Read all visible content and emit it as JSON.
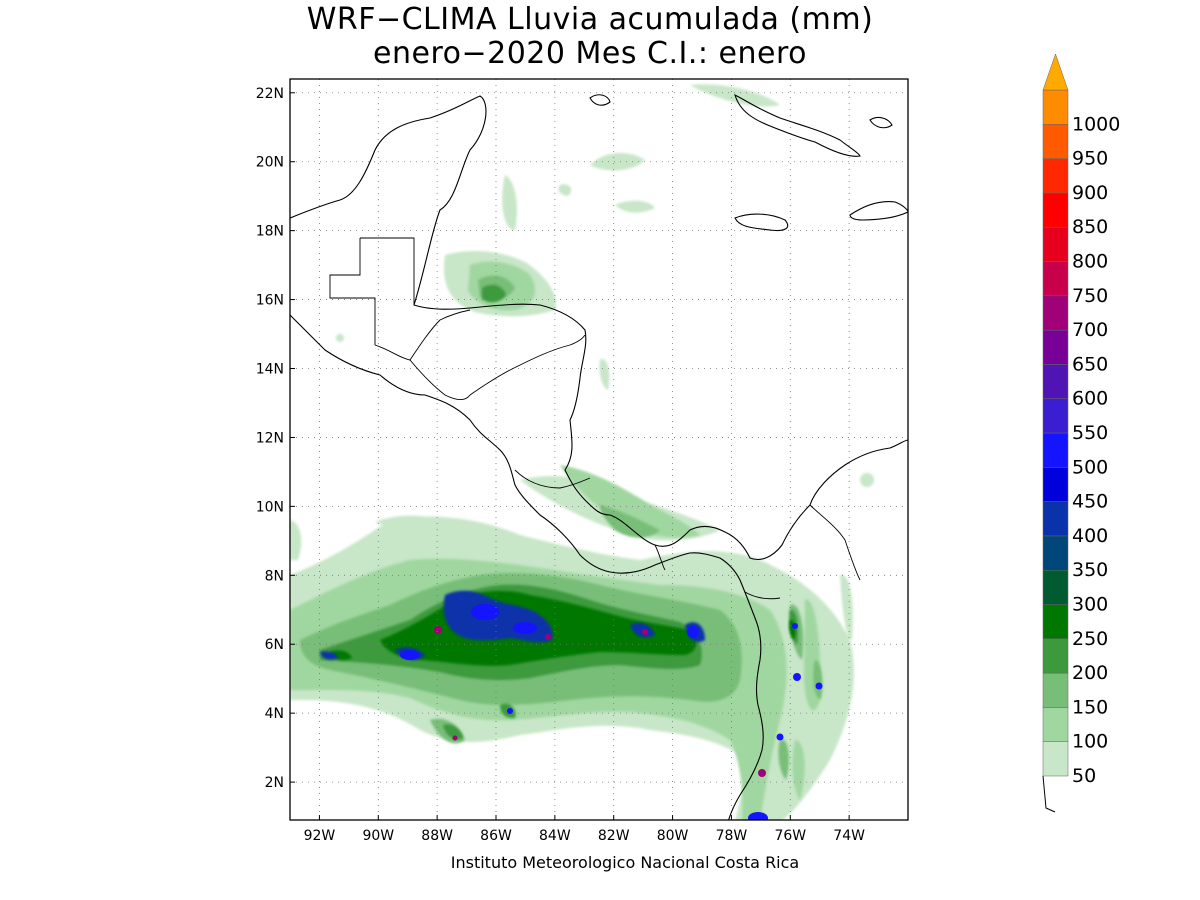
{
  "title_line1": "WRF−CLIMA Lluvia acumulada (mm)",
  "title_line2": "enero−2020 Mes C.I.: enero",
  "credit": "Instituto Meteorologico Nacional Costa Rica",
  "map": {
    "projection": "lat-lon",
    "lon_range": [
      -93.0,
      -72.0
    ],
    "lat_range": [
      0.9,
      22.4
    ],
    "lat_ticks": [
      {
        "value": 22,
        "label": "22N"
      },
      {
        "value": 20,
        "label": "20N"
      },
      {
        "value": 18,
        "label": "18N"
      },
      {
        "value": 16,
        "label": "16N"
      },
      {
        "value": 14,
        "label": "14N"
      },
      {
        "value": 12,
        "label": "12N"
      },
      {
        "value": 10,
        "label": "10N"
      },
      {
        "value": 8,
        "label": "8N"
      },
      {
        "value": 6,
        "label": "6N"
      },
      {
        "value": 4,
        "label": "4N"
      },
      {
        "value": 2,
        "label": "2N"
      }
    ],
    "lon_ticks": [
      {
        "value": -92,
        "label": "92W"
      },
      {
        "value": -90,
        "label": "90W"
      },
      {
        "value": -88,
        "label": "88W"
      },
      {
        "value": -86,
        "label": "86W"
      },
      {
        "value": -84,
        "label": "84W"
      },
      {
        "value": -82,
        "label": "82W"
      },
      {
        "value": -80,
        "label": "80W"
      },
      {
        "value": -78,
        "label": "78W"
      },
      {
        "value": -76,
        "label": "76W"
      },
      {
        "value": -74,
        "label": "74W"
      }
    ],
    "grid": "dotted"
  },
  "colorbar": {
    "unit": "mm",
    "levels": [
      {
        "value": "50",
        "color": "#c8e6c8"
      },
      {
        "value": "100",
        "color": "#a0d7a0"
      },
      {
        "value": "150",
        "color": "#78be78"
      },
      {
        "value": "200",
        "color": "#3c9a3c"
      },
      {
        "value": "250",
        "color": "#007800"
      },
      {
        "value": "300",
        "color": "#005a32"
      },
      {
        "value": "350",
        "color": "#004678"
      },
      {
        "value": "400",
        "color": "#0a32aa"
      },
      {
        "value": "450",
        "color": "#0000dc"
      },
      {
        "value": "500",
        "color": "#1414ff"
      },
      {
        "value": "550",
        "color": "#3c1ed2"
      },
      {
        "value": "600",
        "color": "#5014b4"
      },
      {
        "value": "650",
        "color": "#780096"
      },
      {
        "value": "700",
        "color": "#a00078"
      },
      {
        "value": "750",
        "color": "#c8004b"
      },
      {
        "value": "800",
        "color": "#e6001e"
      },
      {
        "value": "850",
        "color": "#ff0000"
      },
      {
        "value": "900",
        "color": "#ff2800"
      },
      {
        "value": "950",
        "color": "#ff5a00"
      },
      {
        "value": "1000",
        "color": "#ff8c00"
      }
    ],
    "top_arrow_color": "#ffaa00"
  }
}
